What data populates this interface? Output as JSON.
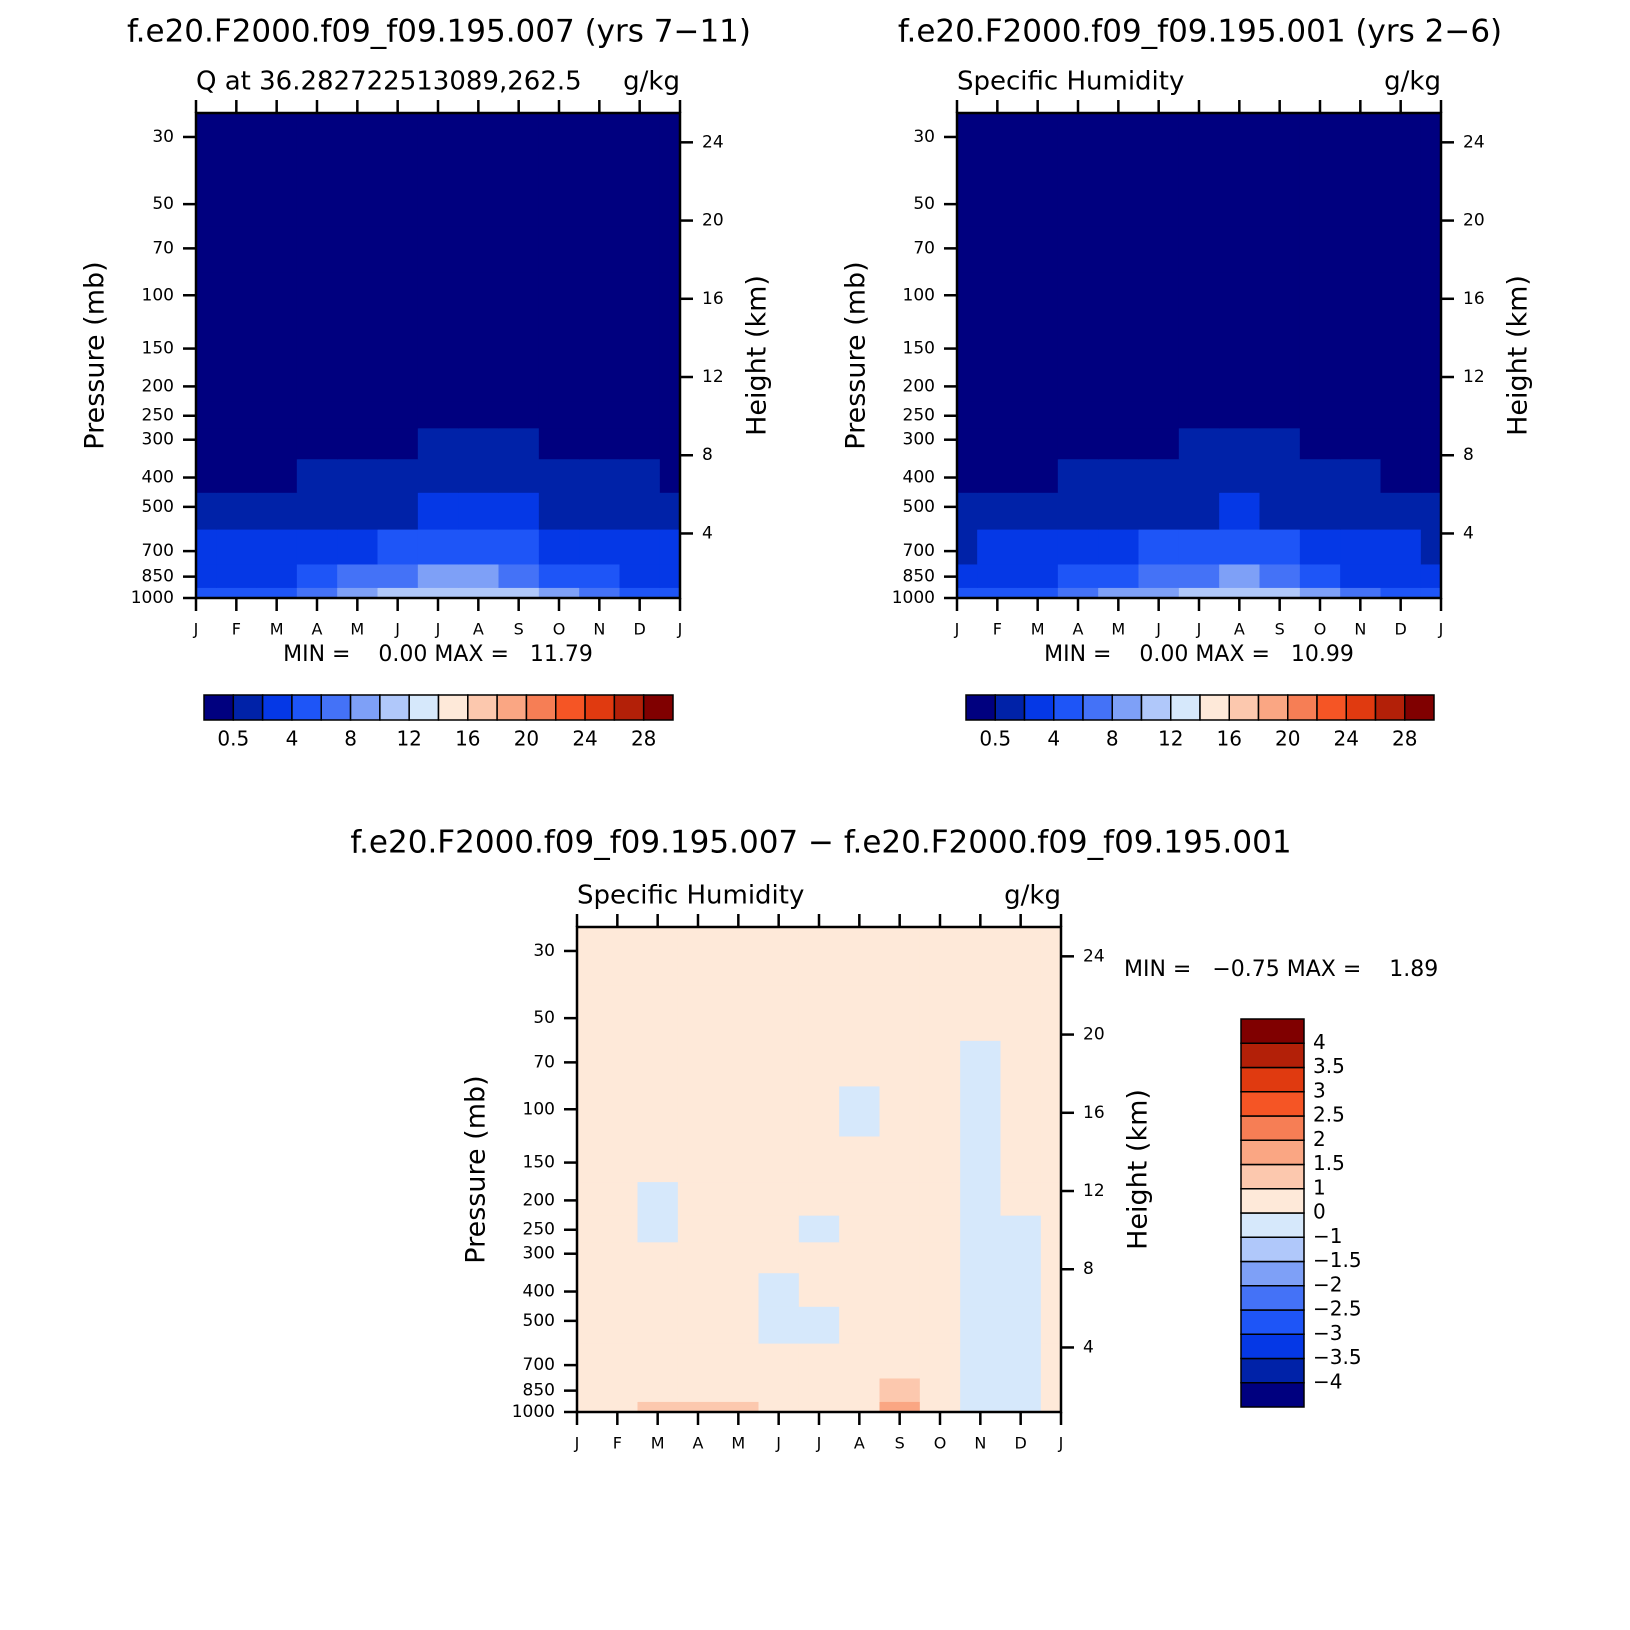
{
  "chart_data": [
    {
      "type": "contour",
      "title": "f.e20.F2000.f09_f09.195.007 (yrs 7−11)",
      "left_title": "Q at 36.282722513089,262.5",
      "right_title": "g/kg",
      "y_label": "Pressure (mb)",
      "y2_label": "Height (km)",
      "stats": "MIN =    0.00 MAX =   11.79",
      "log_y": true,
      "colorbar": "horizontal",
      "x": [
        0,
        1,
        2,
        3,
        4,
        5,
        6,
        7,
        8,
        9,
        10,
        11,
        12
      ],
      "y": [
        1000,
        850,
        700,
        500,
        400,
        300,
        250,
        200,
        150,
        100,
        70,
        50,
        30
      ],
      "xlim": [
        0,
        12
      ],
      "ylim": [
        1000,
        25
      ],
      "y2lim": [
        0.7,
        25.5
      ],
      "xticks": [
        {
          "value": 0,
          "label": "J"
        },
        {
          "value": 1,
          "label": "F"
        },
        {
          "value": 2,
          "label": "M"
        },
        {
          "value": 3,
          "label": "A"
        },
        {
          "value": 4,
          "label": "M"
        },
        {
          "value": 5,
          "label": "J"
        },
        {
          "value": 6,
          "label": "J"
        },
        {
          "value": 7,
          "label": "A"
        },
        {
          "value": 8,
          "label": "S"
        },
        {
          "value": 9,
          "label": "O"
        },
        {
          "value": 10,
          "label": "N"
        },
        {
          "value": 11,
          "label": "D"
        },
        {
          "value": 12,
          "label": "J"
        }
      ],
      "yticks": [
        30,
        50,
        70,
        100,
        150,
        200,
        250,
        300,
        400,
        500,
        700,
        850,
        1000
      ],
      "y2ticks": [
        4,
        8,
        12,
        16,
        20,
        24
      ],
      "levels": [
        0.5,
        2,
        4,
        6,
        8,
        10,
        12,
        14,
        16,
        18,
        20,
        22,
        24,
        26,
        28
      ],
      "colors": [
        "#00007f",
        "#0022a8",
        "#0538e6",
        "#1e55f7",
        "#4472f7",
        "#7ea0f7",
        "#b0c8fa",
        "#d6e8fb",
        "#fee9d9",
        "#fcc8ae",
        "#faa683",
        "#f67e55",
        "#f55525",
        "#e03a10",
        "#b32008",
        "#800000"
      ],
      "z": [
        [
          4.5,
          4.8,
          5.5,
          6.5,
          8.5,
          10,
          11.2,
          11.79,
          10.5,
          8.5,
          6.5,
          5,
          4.5
        ],
        [
          3,
          3.2,
          3.8,
          4.5,
          6,
          7.2,
          8.2,
          8.3,
          7.8,
          5.5,
          4,
          3.3,
          3
        ],
        [
          2,
          2.1,
          2.4,
          2.9,
          3.8,
          4.5,
          5,
          5.1,
          5,
          3.5,
          2.5,
          2.2,
          2
        ],
        [
          0.8,
          0.8,
          0.9,
          1.1,
          1.5,
          1.9,
          2,
          2.1,
          2.1,
          1.3,
          1,
          0.9,
          0.8
        ],
        [
          0.45,
          0.45,
          0.48,
          0.55,
          0.8,
          1,
          1.1,
          1.1,
          1.2,
          0.7,
          0.6,
          0.5,
          0.45
        ],
        [
          0.2,
          0.2,
          0.2,
          0.25,
          0.35,
          0.45,
          0.5,
          0.5,
          0.55,
          0.3,
          0.25,
          0.2,
          0.2
        ],
        [
          0.1,
          0.1,
          0.1,
          0.12,
          0.18,
          0.22,
          0.25,
          0.25,
          0.28,
          0.15,
          0.12,
          0.1,
          0.1
        ],
        [
          0.05,
          0.05,
          0.05,
          0.05,
          0.05,
          0.05,
          0.05,
          0.05,
          0.05,
          0.05,
          0.05,
          0.05,
          0.05
        ],
        [
          0.02,
          0.02,
          0.02,
          0.02,
          0.02,
          0.02,
          0.02,
          0.02,
          0.02,
          0.02,
          0.02,
          0.02,
          0.02
        ],
        [
          0.005,
          0.005,
          0.005,
          0.005,
          0.005,
          0.005,
          0.005,
          0.005,
          0.005,
          0.005,
          0.005,
          0.005,
          0.005
        ],
        [
          0.003,
          0.003,
          0.003,
          0.003,
          0.003,
          0.003,
          0.003,
          0.003,
          0.003,
          0.003,
          0.003,
          0.003,
          0.003
        ],
        [
          0.003,
          0.003,
          0.003,
          0.003,
          0.003,
          0.003,
          0.003,
          0.003,
          0.003,
          0.003,
          0.003,
          0.003,
          0.003
        ],
        [
          0.003,
          0.003,
          0.003,
          0.003,
          0.003,
          0.003,
          0.003,
          0.003,
          0.003,
          0.003,
          0.003,
          0.003,
          0.003
        ]
      ]
    },
    {
      "type": "contour",
      "title": "f.e20.F2000.f09_f09.195.001 (yrs 2−6)",
      "left_title": "Specific Humidity",
      "right_title": "g/kg",
      "y_label": "Pressure (mb)",
      "y2_label": "Height (km)",
      "stats": "MIN =    0.00 MAX =   10.99",
      "log_y": true,
      "colorbar": "horizontal",
      "x": [
        0,
        1,
        2,
        3,
        4,
        5,
        6,
        7,
        8,
        9,
        10,
        11,
        12
      ],
      "y": [
        1000,
        850,
        700,
        500,
        400,
        300,
        250,
        200,
        150,
        100,
        70,
        50,
        30
      ],
      "xlim": [
        0,
        12
      ],
      "ylim": [
        1000,
        25
      ],
      "y2lim": [
        0.7,
        25.5
      ],
      "xticks": [
        {
          "value": 0,
          "label": "J"
        },
        {
          "value": 1,
          "label": "F"
        },
        {
          "value": 2,
          "label": "M"
        },
        {
          "value": 3,
          "label": "A"
        },
        {
          "value": 4,
          "label": "M"
        },
        {
          "value": 5,
          "label": "J"
        },
        {
          "value": 6,
          "label": "J"
        },
        {
          "value": 7,
          "label": "A"
        },
        {
          "value": 8,
          "label": "S"
        },
        {
          "value": 9,
          "label": "O"
        },
        {
          "value": 10,
          "label": "N"
        },
        {
          "value": 11,
          "label": "D"
        },
        {
          "value": 12,
          "label": "J"
        }
      ],
      "yticks": [
        30,
        50,
        70,
        100,
        150,
        200,
        250,
        300,
        400,
        500,
        700,
        850,
        1000
      ],
      "y2ticks": [
        4,
        8,
        12,
        16,
        20,
        24
      ],
      "levels": [
        0.5,
        2,
        4,
        6,
        8,
        10,
        12,
        14,
        16,
        18,
        20,
        22,
        24,
        26,
        28
      ],
      "colors": [
        "#00007f",
        "#0022a8",
        "#0538e6",
        "#1e55f7",
        "#4472f7",
        "#7ea0f7",
        "#b0c8fa",
        "#d6e8fb",
        "#fee9d9",
        "#fcc8ae",
        "#faa683",
        "#f67e55",
        "#f55525",
        "#e03a10",
        "#b32008",
        "#800000"
      ],
      "z": [
        [
          4.3,
          4.5,
          5.2,
          6.2,
          8,
          9.5,
          10.5,
          10.99,
          10,
          8,
          6.2,
          4.8,
          4.3
        ],
        [
          2.9,
          3.1,
          3.6,
          4.3,
          5.8,
          7,
          7.9,
          8.1,
          7.4,
          5.2,
          3.8,
          3.2,
          2.9
        ],
        [
          1.9,
          2,
          2.3,
          2.8,
          3.6,
          4.3,
          4.8,
          4.9,
          4.7,
          3.3,
          2.4,
          2.1,
          1.9
        ],
        [
          0.75,
          0.75,
          0.85,
          1.05,
          1.4,
          1.8,
          1.95,
          2,
          1.9,
          1.2,
          0.95,
          0.85,
          0.75
        ],
        [
          0.42,
          0.42,
          0.45,
          0.52,
          0.75,
          0.95,
          1.05,
          1.05,
          1.1,
          0.65,
          0.55,
          0.48,
          0.42
        ],
        [
          0.2,
          0.2,
          0.2,
          0.25,
          0.35,
          0.45,
          0.5,
          0.5,
          0.55,
          0.3,
          0.25,
          0.2,
          0.2
        ],
        [
          0.1,
          0.1,
          0.1,
          0.12,
          0.18,
          0.22,
          0.25,
          0.25,
          0.28,
          0.15,
          0.12,
          0.1,
          0.1
        ],
        [
          0.05,
          0.05,
          0.05,
          0.05,
          0.05,
          0.05,
          0.05,
          0.05,
          0.05,
          0.05,
          0.05,
          0.05,
          0.05
        ],
        [
          0.02,
          0.02,
          0.02,
          0.02,
          0.02,
          0.02,
          0.02,
          0.02,
          0.02,
          0.02,
          0.02,
          0.02,
          0.02
        ],
        [
          0.005,
          0.005,
          0.005,
          0.005,
          0.005,
          0.005,
          0.005,
          0.005,
          0.005,
          0.005,
          0.005,
          0.005,
          0.005
        ],
        [
          0.003,
          0.003,
          0.003,
          0.003,
          0.003,
          0.003,
          0.003,
          0.003,
          0.003,
          0.003,
          0.003,
          0.003,
          0.003
        ],
        [
          0.003,
          0.003,
          0.003,
          0.003,
          0.003,
          0.003,
          0.003,
          0.003,
          0.003,
          0.003,
          0.003,
          0.003,
          0.003
        ],
        [
          0.003,
          0.003,
          0.003,
          0.003,
          0.003,
          0.003,
          0.003,
          0.003,
          0.003,
          0.003,
          0.003,
          0.003,
          0.003
        ]
      ]
    },
    {
      "type": "contour",
      "title": "f.e20.F2000.f09_f09.195.007 − f.e20.F2000.f09_f09.195.001",
      "left_title": "Specific Humidity",
      "right_title": "g/kg",
      "y_label": "Pressure (mb)",
      "y2_label": "Height (km)",
      "stats": "MIN =   −0.75 MAX =    1.89",
      "log_y": true,
      "colorbar": "vertical",
      "x": [
        0,
        1,
        2,
        3,
        4,
        5,
        6,
        7,
        8,
        9,
        10,
        11,
        12
      ],
      "y": [
        1000,
        850,
        700,
        500,
        400,
        300,
        250,
        200,
        150,
        100,
        70,
        50,
        30
      ],
      "xlim": [
        0,
        12
      ],
      "ylim": [
        1000,
        25
      ],
      "y2lim": [
        0.7,
        25.5
      ],
      "xticks": [
        {
          "value": 0,
          "label": "J"
        },
        {
          "value": 1,
          "label": "F"
        },
        {
          "value": 2,
          "label": "M"
        },
        {
          "value": 3,
          "label": "A"
        },
        {
          "value": 4,
          "label": "M"
        },
        {
          "value": 5,
          "label": "J"
        },
        {
          "value": 6,
          "label": "J"
        },
        {
          "value": 7,
          "label": "A"
        },
        {
          "value": 8,
          "label": "S"
        },
        {
          "value": 9,
          "label": "O"
        },
        {
          "value": 10,
          "label": "N"
        },
        {
          "value": 11,
          "label": "D"
        },
        {
          "value": 12,
          "label": "J"
        }
      ],
      "yticks": [
        30,
        50,
        70,
        100,
        150,
        200,
        250,
        300,
        400,
        500,
        700,
        850,
        1000
      ],
      "y2ticks": [
        4,
        8,
        12,
        16,
        20,
        24
      ],
      "levels": [
        {
          "value": -4,
          "label": "−4"
        },
        {
          "value": -3.5,
          "label": "−3.5"
        },
        {
          "value": -3,
          "label": "−3"
        },
        {
          "value": -2.5,
          "label": "−2.5"
        },
        {
          "value": -2,
          "label": "−2"
        },
        {
          "value": -1.5,
          "label": "−1.5"
        },
        {
          "value": -1,
          "label": "−1"
        },
        0,
        1,
        1.5,
        2,
        2.5,
        3,
        3.5,
        4
      ],
      "colors": [
        "#00007f",
        "#0022a8",
        "#0538e6",
        "#1e55f7",
        "#4472f7",
        "#7ea0f7",
        "#b0c8fa",
        "#d6e8fb",
        "#fee9d9",
        "#fcc8ae",
        "#faa683",
        "#f67e55",
        "#f55525",
        "#e03a10",
        "#b32008",
        "#800000"
      ],
      "z": [
        [
          0.3,
          0.4,
          1.2,
          1.1,
          1.3,
          0.6,
          0.3,
          0.4,
          1.89,
          0.2,
          -0.2,
          -0.1,
          0.5
        ],
        [
          0.2,
          0.2,
          0.6,
          0.5,
          0.7,
          0.3,
          0.2,
          0.3,
          1.05,
          0.3,
          -0.2,
          -0.3,
          0.3
        ],
        [
          0.3,
          0.2,
          0.3,
          0.3,
          0.4,
          0.2,
          0.3,
          0.3,
          0.3,
          0.2,
          -0.3,
          -0.75,
          0.2
        ],
        [
          0.2,
          0.3,
          0.2,
          0.3,
          0.3,
          -0.1,
          -0.2,
          0.2,
          0.3,
          0.2,
          -0.2,
          -0.3,
          0.2
        ],
        [
          0.2,
          0.2,
          0.2,
          0.2,
          0.3,
          -0.1,
          0.1,
          0.2,
          0.2,
          0.2,
          -0.1,
          -0.2,
          0.2
        ],
        [
          0.2,
          0.2,
          0.2,
          0.2,
          0.2,
          0.2,
          0.2,
          0.2,
          0.2,
          0.2,
          -0.2,
          -0.2,
          0.2
        ],
        [
          0.1,
          0.2,
          -0.1,
          0.2,
          0.2,
          0.2,
          -0.05,
          0.2,
          0.2,
          0.2,
          -0.2,
          -0.1,
          0.2
        ],
        [
          0.1,
          0.2,
          -0.1,
          0.2,
          0.2,
          0.2,
          0.1,
          0.2,
          0.2,
          0.2,
          -0.2,
          0.1,
          0.2
        ],
        [
          0.1,
          0.1,
          0.1,
          0.1,
          0.1,
          0.1,
          0.1,
          0.1,
          0.1,
          0.1,
          -0.1,
          0.1,
          0.1
        ],
        [
          0.1,
          0.1,
          0.1,
          0.1,
          0.1,
          0.1,
          0.1,
          -0.05,
          0.1,
          0.1,
          -0.1,
          0.1,
          0.1
        ],
        [
          0.1,
          0.1,
          0.1,
          0.1,
          0.1,
          0.1,
          0.1,
          0.1,
          0.1,
          0.1,
          -0.05,
          0.1,
          0.1
        ],
        [
          0.1,
          0.1,
          0.1,
          0.1,
          0.1,
          0.1,
          0.1,
          0.1,
          0.1,
          0.1,
          0.1,
          0.1,
          0.1
        ],
        [
          0.1,
          0.1,
          0.1,
          0.1,
          0.1,
          0.1,
          0.1,
          0.1,
          0.1,
          0.1,
          0.1,
          0.1,
          0.1
        ]
      ]
    }
  ]
}
